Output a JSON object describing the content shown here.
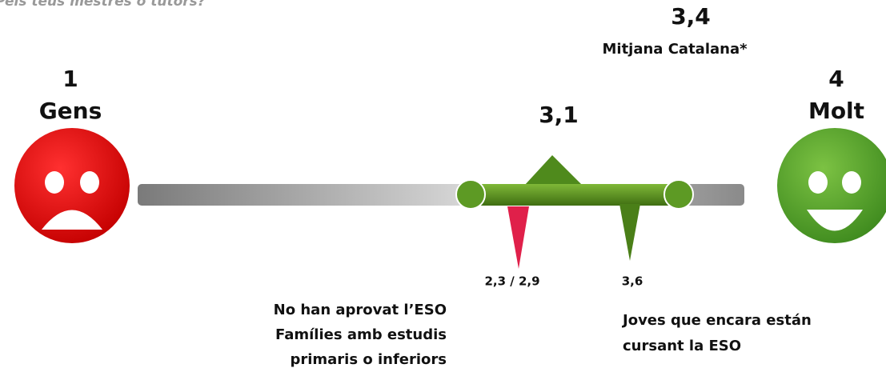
{
  "header": {
    "question": "Pels teus mestres o tutors?"
  },
  "scale": {
    "min": {
      "value": "1",
      "label": "Gens"
    },
    "max": {
      "value": "4",
      "label": "Molt"
    },
    "average": {
      "value": "3,1"
    },
    "catalan_average": {
      "value": "3,4",
      "label": "Mitjana Catalana*"
    }
  },
  "groups": [
    {
      "value": "2,3 / 2,9",
      "lines": [
        "No han aprovat l’ESO",
        "Famílies amb estudis",
        "primaris o inferiors"
      ]
    },
    {
      "value": "3,6",
      "lines": [
        "Joves que encara están",
        "cursant la ESO"
      ]
    }
  ]
}
